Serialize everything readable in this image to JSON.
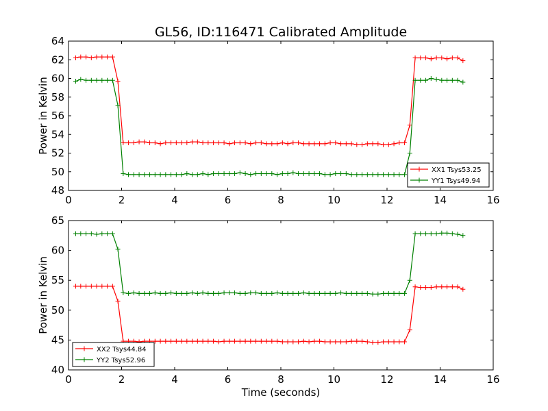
{
  "title": "GL56, ID:116471 Calibrated Amplitude",
  "chart_data": [
    {
      "type": "line",
      "ylabel": "Power in Kelvin",
      "xlabel": "",
      "xlim": [
        0,
        16
      ],
      "ylim": [
        48,
        64
      ],
      "xticks": [
        "0",
        "2",
        "4",
        "6",
        "8",
        "10",
        "12",
        "14",
        "16"
      ],
      "yticks": [
        "48",
        "50",
        "52",
        "54",
        "56",
        "58",
        "60",
        "62",
        "64"
      ],
      "legend_position": "lower-right",
      "x": [
        0.27,
        0.46,
        0.66,
        0.86,
        1.06,
        1.26,
        1.46,
        1.66,
        1.86,
        2.06,
        2.26,
        2.46,
        2.66,
        2.86,
        3.06,
        3.26,
        3.46,
        3.66,
        3.86,
        4.06,
        4.26,
        4.46,
        4.66,
        4.86,
        5.06,
        5.26,
        5.46,
        5.66,
        5.86,
        6.06,
        6.26,
        6.46,
        6.66,
        6.86,
        7.06,
        7.26,
        7.46,
        7.66,
        7.86,
        8.06,
        8.26,
        8.46,
        8.66,
        8.86,
        9.06,
        9.26,
        9.46,
        9.66,
        9.86,
        10.06,
        10.26,
        10.46,
        10.66,
        10.86,
        11.06,
        11.26,
        11.46,
        11.66,
        11.86,
        12.06,
        12.26,
        12.46,
        12.66,
        12.86,
        13.06,
        13.26,
        13.46,
        13.66,
        13.86,
        14.06,
        14.26,
        14.46,
        14.66,
        14.86
      ],
      "series": [
        {
          "name": "XX1 Tsys53.25",
          "color": "#ff0000",
          "values": [
            62.2,
            62.3,
            62.3,
            62.2,
            62.3,
            62.3,
            62.3,
            62.3,
            59.7,
            53.1,
            53.1,
            53.1,
            53.2,
            53.2,
            53.1,
            53.1,
            53.0,
            53.1,
            53.1,
            53.1,
            53.1,
            53.1,
            53.2,
            53.2,
            53.1,
            53.1,
            53.1,
            53.1,
            53.1,
            53.0,
            53.1,
            53.1,
            53.1,
            53.0,
            53.1,
            53.1,
            53.0,
            53.0,
            53.0,
            53.1,
            53.0,
            53.1,
            53.1,
            53.0,
            53.0,
            53.0,
            53.0,
            53.0,
            53.1,
            53.1,
            53.0,
            53.0,
            53.0,
            52.9,
            52.9,
            53.0,
            53.0,
            53.0,
            52.9,
            52.9,
            53.0,
            53.1,
            53.1,
            55.0,
            62.2,
            62.2,
            62.2,
            62.1,
            62.2,
            62.2,
            62.1,
            62.2,
            62.2,
            61.9
          ]
        },
        {
          "name": "YY1 Tsys49.94",
          "color": "#008000",
          "values": [
            59.7,
            59.9,
            59.8,
            59.8,
            59.8,
            59.8,
            59.8,
            59.8,
            57.1,
            49.8,
            49.7,
            49.7,
            49.7,
            49.7,
            49.7,
            49.7,
            49.7,
            49.7,
            49.7,
            49.7,
            49.7,
            49.8,
            49.7,
            49.7,
            49.8,
            49.7,
            49.8,
            49.8,
            49.8,
            49.8,
            49.8,
            49.9,
            49.8,
            49.7,
            49.8,
            49.8,
            49.8,
            49.8,
            49.7,
            49.8,
            49.8,
            49.9,
            49.8,
            49.8,
            49.8,
            49.8,
            49.8,
            49.7,
            49.7,
            49.8,
            49.8,
            49.8,
            49.7,
            49.7,
            49.7,
            49.7,
            49.7,
            49.7,
            49.7,
            49.7,
            49.7,
            49.7,
            49.7,
            52.0,
            59.8,
            59.8,
            59.8,
            60.0,
            59.9,
            59.8,
            59.8,
            59.8,
            59.8,
            59.6
          ]
        }
      ]
    },
    {
      "type": "line",
      "ylabel": "Power in Kelvin",
      "xlabel": "Time (seconds)",
      "xlim": [
        0,
        16
      ],
      "ylim": [
        40,
        65
      ],
      "xticks": [
        "0",
        "2",
        "4",
        "6",
        "8",
        "10",
        "12",
        "14",
        "16"
      ],
      "yticks": [
        "40",
        "45",
        "50",
        "55",
        "60",
        "65"
      ],
      "legend_position": "lower-left",
      "x": [
        0.27,
        0.46,
        0.66,
        0.86,
        1.06,
        1.26,
        1.46,
        1.66,
        1.86,
        2.06,
        2.26,
        2.46,
        2.66,
        2.86,
        3.06,
        3.26,
        3.46,
        3.66,
        3.86,
        4.06,
        4.26,
        4.46,
        4.66,
        4.86,
        5.06,
        5.26,
        5.46,
        5.66,
        5.86,
        6.06,
        6.26,
        6.46,
        6.66,
        6.86,
        7.06,
        7.26,
        7.46,
        7.66,
        7.86,
        8.06,
        8.26,
        8.46,
        8.66,
        8.86,
        9.06,
        9.26,
        9.46,
        9.66,
        9.86,
        10.06,
        10.26,
        10.46,
        10.66,
        10.86,
        11.06,
        11.26,
        11.46,
        11.66,
        11.86,
        12.06,
        12.26,
        12.46,
        12.66,
        12.86,
        13.06,
        13.26,
        13.46,
        13.66,
        13.86,
        14.06,
        14.26,
        14.46,
        14.66,
        14.86
      ],
      "series": [
        {
          "name": "XX2 Tsys44.84",
          "color": "#ff0000",
          "values": [
            54.0,
            54.0,
            54.0,
            54.0,
            54.0,
            54.0,
            54.0,
            54.0,
            51.5,
            44.8,
            44.8,
            44.8,
            44.7,
            44.8,
            44.8,
            44.8,
            44.8,
            44.8,
            44.8,
            44.8,
            44.8,
            44.8,
            44.8,
            44.8,
            44.8,
            44.8,
            44.8,
            44.7,
            44.8,
            44.8,
            44.8,
            44.8,
            44.8,
            44.8,
            44.8,
            44.8,
            44.8,
            44.8,
            44.8,
            44.7,
            44.7,
            44.7,
            44.7,
            44.8,
            44.7,
            44.8,
            44.8,
            44.7,
            44.7,
            44.7,
            44.7,
            44.7,
            44.8,
            44.8,
            44.8,
            44.7,
            44.6,
            44.6,
            44.7,
            44.7,
            44.7,
            44.7,
            44.7,
            46.7,
            53.9,
            53.8,
            53.8,
            53.8,
            53.9,
            53.9,
            53.9,
            53.9,
            53.9,
            53.5
          ]
        },
        {
          "name": "YY2 Tsys52.96",
          "color": "#008000",
          "values": [
            62.8,
            62.8,
            62.8,
            62.8,
            62.7,
            62.8,
            62.8,
            62.8,
            60.2,
            52.9,
            52.8,
            52.9,
            52.8,
            52.8,
            52.8,
            52.9,
            52.8,
            52.8,
            52.9,
            52.8,
            52.8,
            52.8,
            52.9,
            52.8,
            52.9,
            52.8,
            52.8,
            52.8,
            52.9,
            52.9,
            52.9,
            52.8,
            52.8,
            52.9,
            52.9,
            52.8,
            52.8,
            52.8,
            52.9,
            52.8,
            52.8,
            52.8,
            52.8,
            52.9,
            52.8,
            52.8,
            52.8,
            52.8,
            52.8,
            52.8,
            52.9,
            52.8,
            52.8,
            52.8,
            52.8,
            52.8,
            52.7,
            52.7,
            52.8,
            52.8,
            52.8,
            52.8,
            52.8,
            55.0,
            62.8,
            62.8,
            62.8,
            62.8,
            62.8,
            62.9,
            62.9,
            62.8,
            62.7,
            62.5
          ]
        }
      ]
    }
  ]
}
